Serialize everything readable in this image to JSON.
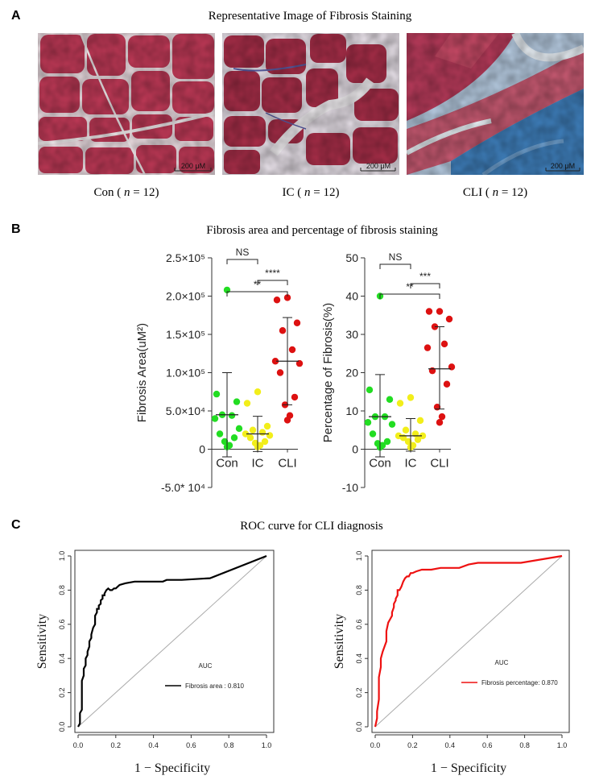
{
  "panels": {
    "a": {
      "letter": "A",
      "title": "Representative Image of Fibrosis Staining",
      "images": [
        {
          "group": "Con",
          "n_label": "n",
          "n_value": "12",
          "scale": "200  μM"
        },
        {
          "group": "IC",
          "n_label": "n",
          "n_value": "12",
          "scale": "200  μM"
        },
        {
          "group": "CLI",
          "n_label": "n",
          "n_value": "12",
          "scale": "200  μM"
        }
      ],
      "colors": {
        "muscle": "#b8334f",
        "collagen": "#3e78b8",
        "background": "#f1e8ec"
      }
    },
    "b": {
      "letter": "B",
      "title": "Fibrosis area and percentage  of fibrosis staining"
    },
    "c": {
      "letter": "C",
      "title": "ROC curve for CLI diagnosis"
    }
  },
  "chart_data": [
    {
      "type": "scatter",
      "ylabel": "Fibrosis Area(uM²)",
      "categories": [
        "Con",
        "IC",
        "CLI"
      ],
      "yticks": [
        "2.5×10⁵",
        "2.0×10⁵",
        "1.5×10⁵",
        "1.0×10⁵",
        "5.0×10⁴",
        "0",
        "-5.0* 10⁴"
      ],
      "ytick_values": [
        250000,
        200000,
        150000,
        100000,
        50000,
        0,
        -50000
      ],
      "ylim": [
        -50000,
        250000
      ],
      "series": [
        {
          "category": "Con",
          "color": "#22dd22",
          "mean": 45000,
          "sd_low": -10000,
          "sd_high": 100000,
          "values": [
            208000,
            72000,
            62000,
            45000,
            44000,
            40000,
            27000,
            20000,
            15000,
            10000,
            5000,
            3000
          ]
        },
        {
          "category": "IC",
          "color": "#f2ee1a",
          "mean": 20000,
          "sd_low": -3000,
          "sd_high": 43000,
          "values": [
            75000,
            60000,
            30000,
            25000,
            22000,
            20000,
            18000,
            15000,
            10000,
            8000,
            5000,
            3000
          ]
        },
        {
          "category": "CLI",
          "color": "#dd1111",
          "mean": 115000,
          "sd_low": 58000,
          "sd_high": 172000,
          "values": [
            198000,
            195000,
            165000,
            155000,
            130000,
            115000,
            112000,
            100000,
            68000,
            58000,
            44000,
            38000
          ]
        }
      ],
      "significance": [
        {
          "from": "Con",
          "to": "IC",
          "label": "NS"
        },
        {
          "from": "IC",
          "to": "CLI",
          "label": "****"
        },
        {
          "from": "Con",
          "to": "CLI",
          "label": "**"
        }
      ]
    },
    {
      "type": "scatter",
      "ylabel": "Percentage of Fibrosis(%)",
      "categories": [
        "Con",
        "IC",
        "CLI"
      ],
      "yticks": [
        "50",
        "40",
        "30",
        "20",
        "10",
        "0",
        "-10"
      ],
      "ytick_values": [
        50,
        40,
        30,
        20,
        10,
        0,
        -10
      ],
      "ylim": [
        -10,
        50
      ],
      "series": [
        {
          "category": "Con",
          "color": "#22dd22",
          "mean": 8.5,
          "sd_low": -2,
          "sd_high": 19.5,
          "values": [
            40,
            15.5,
            13,
            8.5,
            8.5,
            7,
            6.5,
            4,
            2,
            1.5,
            1,
            0.5
          ]
        },
        {
          "category": "IC",
          "color": "#f2ee1a",
          "mean": 3.5,
          "sd_low": -0.5,
          "sd_high": 8,
          "values": [
            13.5,
            12,
            7.5,
            5,
            4,
            3.5,
            3.5,
            3,
            2.5,
            2,
            1,
            0.5
          ]
        },
        {
          "category": "CLI",
          "color": "#dd1111",
          "mean": 21,
          "sd_low": 10.5,
          "sd_high": 32,
          "values": [
            36,
            36,
            34,
            32,
            27.5,
            26.5,
            21.5,
            20.5,
            17,
            11,
            8.5,
            7
          ]
        }
      ],
      "significance": [
        {
          "from": "Con",
          "to": "IC",
          "label": "NS"
        },
        {
          "from": "IC",
          "to": "CLI",
          "label": "***"
        },
        {
          "from": "Con",
          "to": "CLI",
          "label": "**"
        }
      ]
    },
    {
      "type": "line",
      "xlabel": "1 − Specificity",
      "ylabel": "Sensitivity",
      "xlim": [
        0,
        1
      ],
      "ylim": [
        0,
        1
      ],
      "xticks": [
        "0.0",
        "0.2",
        "0.4",
        "0.6",
        "0.8",
        "1.0"
      ],
      "yticks": [
        "0.0",
        "0.2",
        "0.4",
        "0.6",
        "0.8",
        "1.0"
      ],
      "legend_title": "AUC",
      "legend_position": "bottom-right",
      "series": [
        {
          "name": "Fibrosis area : 0.810",
          "color": "#000000",
          "x": [
            0.0,
            0.01,
            0.01,
            0.02,
            0.02,
            0.03,
            0.03,
            0.04,
            0.04,
            0.05,
            0.05,
            0.06,
            0.06,
            0.07,
            0.07,
            0.08,
            0.09,
            0.09,
            0.1,
            0.1,
            0.11,
            0.11,
            0.12,
            0.12,
            0.13,
            0.13,
            0.14,
            0.14,
            0.15,
            0.16,
            0.17,
            0.18,
            0.19,
            0.2,
            0.22,
            0.25,
            0.3,
            0.35,
            0.45,
            0.47,
            0.55,
            0.7,
            1.0
          ],
          "y": [
            0.0,
            0.02,
            0.08,
            0.1,
            0.27,
            0.3,
            0.34,
            0.36,
            0.4,
            0.42,
            0.44,
            0.47,
            0.5,
            0.52,
            0.54,
            0.58,
            0.6,
            0.65,
            0.67,
            0.69,
            0.69,
            0.71,
            0.72,
            0.74,
            0.75,
            0.77,
            0.77,
            0.78,
            0.8,
            0.81,
            0.8,
            0.8,
            0.81,
            0.81,
            0.83,
            0.84,
            0.85,
            0.85,
            0.85,
            0.86,
            0.86,
            0.87,
            1.0
          ]
        },
        {
          "name": "reference",
          "color": "#aaaaaa",
          "x": [
            0,
            1
          ],
          "y": [
            0,
            1
          ]
        }
      ]
    },
    {
      "type": "line",
      "xlabel": "1 − Specificity",
      "ylabel": "Sensitivity",
      "xlim": [
        0,
        1
      ],
      "ylim": [
        0,
        1
      ],
      "xticks": [
        "0.0",
        "0.2",
        "0.4",
        "0.6",
        "0.8",
        "1.0"
      ],
      "yticks": [
        "0.0",
        "0.2",
        "0.4",
        "0.6",
        "0.8",
        "1.0"
      ],
      "legend_title": "AUC",
      "legend_position": "bottom-right",
      "series": [
        {
          "name": "Fibrosis percentage: 0.870",
          "color": "#ee1111",
          "x": [
            0.0,
            0.01,
            0.01,
            0.02,
            0.02,
            0.03,
            0.03,
            0.04,
            0.05,
            0.06,
            0.06,
            0.07,
            0.08,
            0.09,
            0.09,
            0.1,
            0.1,
            0.11,
            0.11,
            0.12,
            0.12,
            0.13,
            0.14,
            0.15,
            0.16,
            0.17,
            0.18,
            0.19,
            0.2,
            0.22,
            0.25,
            0.3,
            0.35,
            0.45,
            0.5,
            0.55,
            0.78,
            1.0
          ],
          "y": [
            0.0,
            0.05,
            0.09,
            0.16,
            0.29,
            0.35,
            0.4,
            0.44,
            0.47,
            0.5,
            0.56,
            0.61,
            0.63,
            0.65,
            0.67,
            0.7,
            0.72,
            0.74,
            0.75,
            0.77,
            0.8,
            0.8,
            0.82,
            0.85,
            0.87,
            0.88,
            0.88,
            0.9,
            0.9,
            0.91,
            0.92,
            0.92,
            0.93,
            0.93,
            0.95,
            0.96,
            0.96,
            1.0
          ]
        },
        {
          "name": "reference",
          "color": "#aaaaaa",
          "x": [
            0,
            1
          ],
          "y": [
            0,
            1
          ]
        }
      ]
    }
  ]
}
